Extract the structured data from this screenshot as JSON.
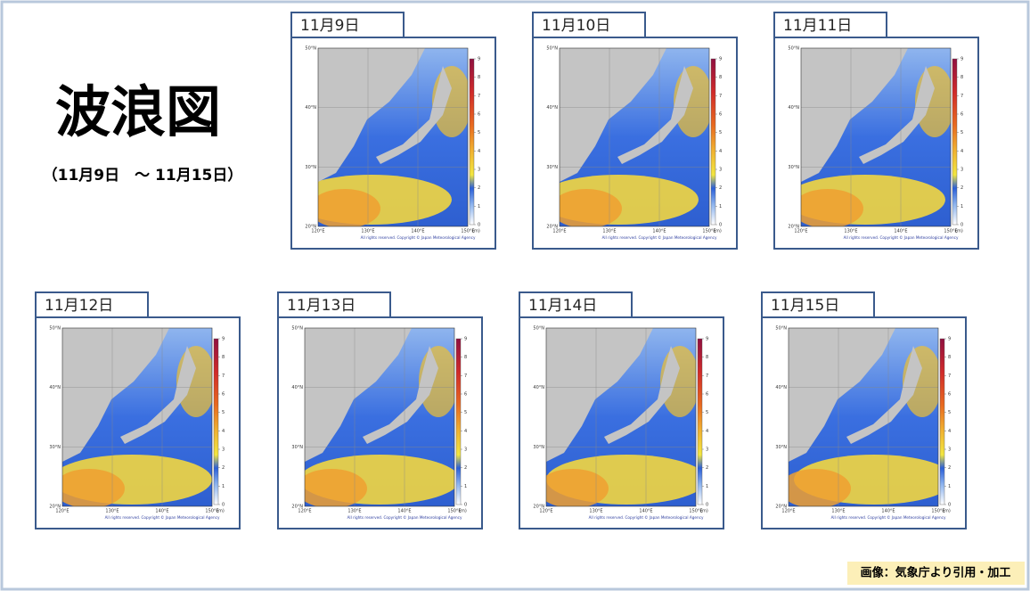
{
  "title": "波浪図",
  "subtitle": "（11月9日　～ 11月15日）",
  "maps": [
    {
      "date": "11月9日"
    },
    {
      "date": "11月10日"
    },
    {
      "date": "11月11日"
    },
    {
      "date": "11月12日"
    },
    {
      "date": "11月13日"
    },
    {
      "date": "11月14日"
    },
    {
      "date": "11月15日"
    }
  ],
  "lat_labels": [
    "50°N",
    "40°N",
    "30°N",
    "20°N"
  ],
  "lon_labels": [
    "120°E",
    "130°E",
    "140°E",
    "150°E"
  ],
  "colorbar_ticks": [
    0,
    1,
    2,
    3,
    4,
    5,
    6,
    7,
    8,
    9
  ],
  "unit": "(m)",
  "copyright": "All rights reserved. Copyright © Japan Meteorological Agency",
  "credit": "画像：気象庁より引用・加工"
}
